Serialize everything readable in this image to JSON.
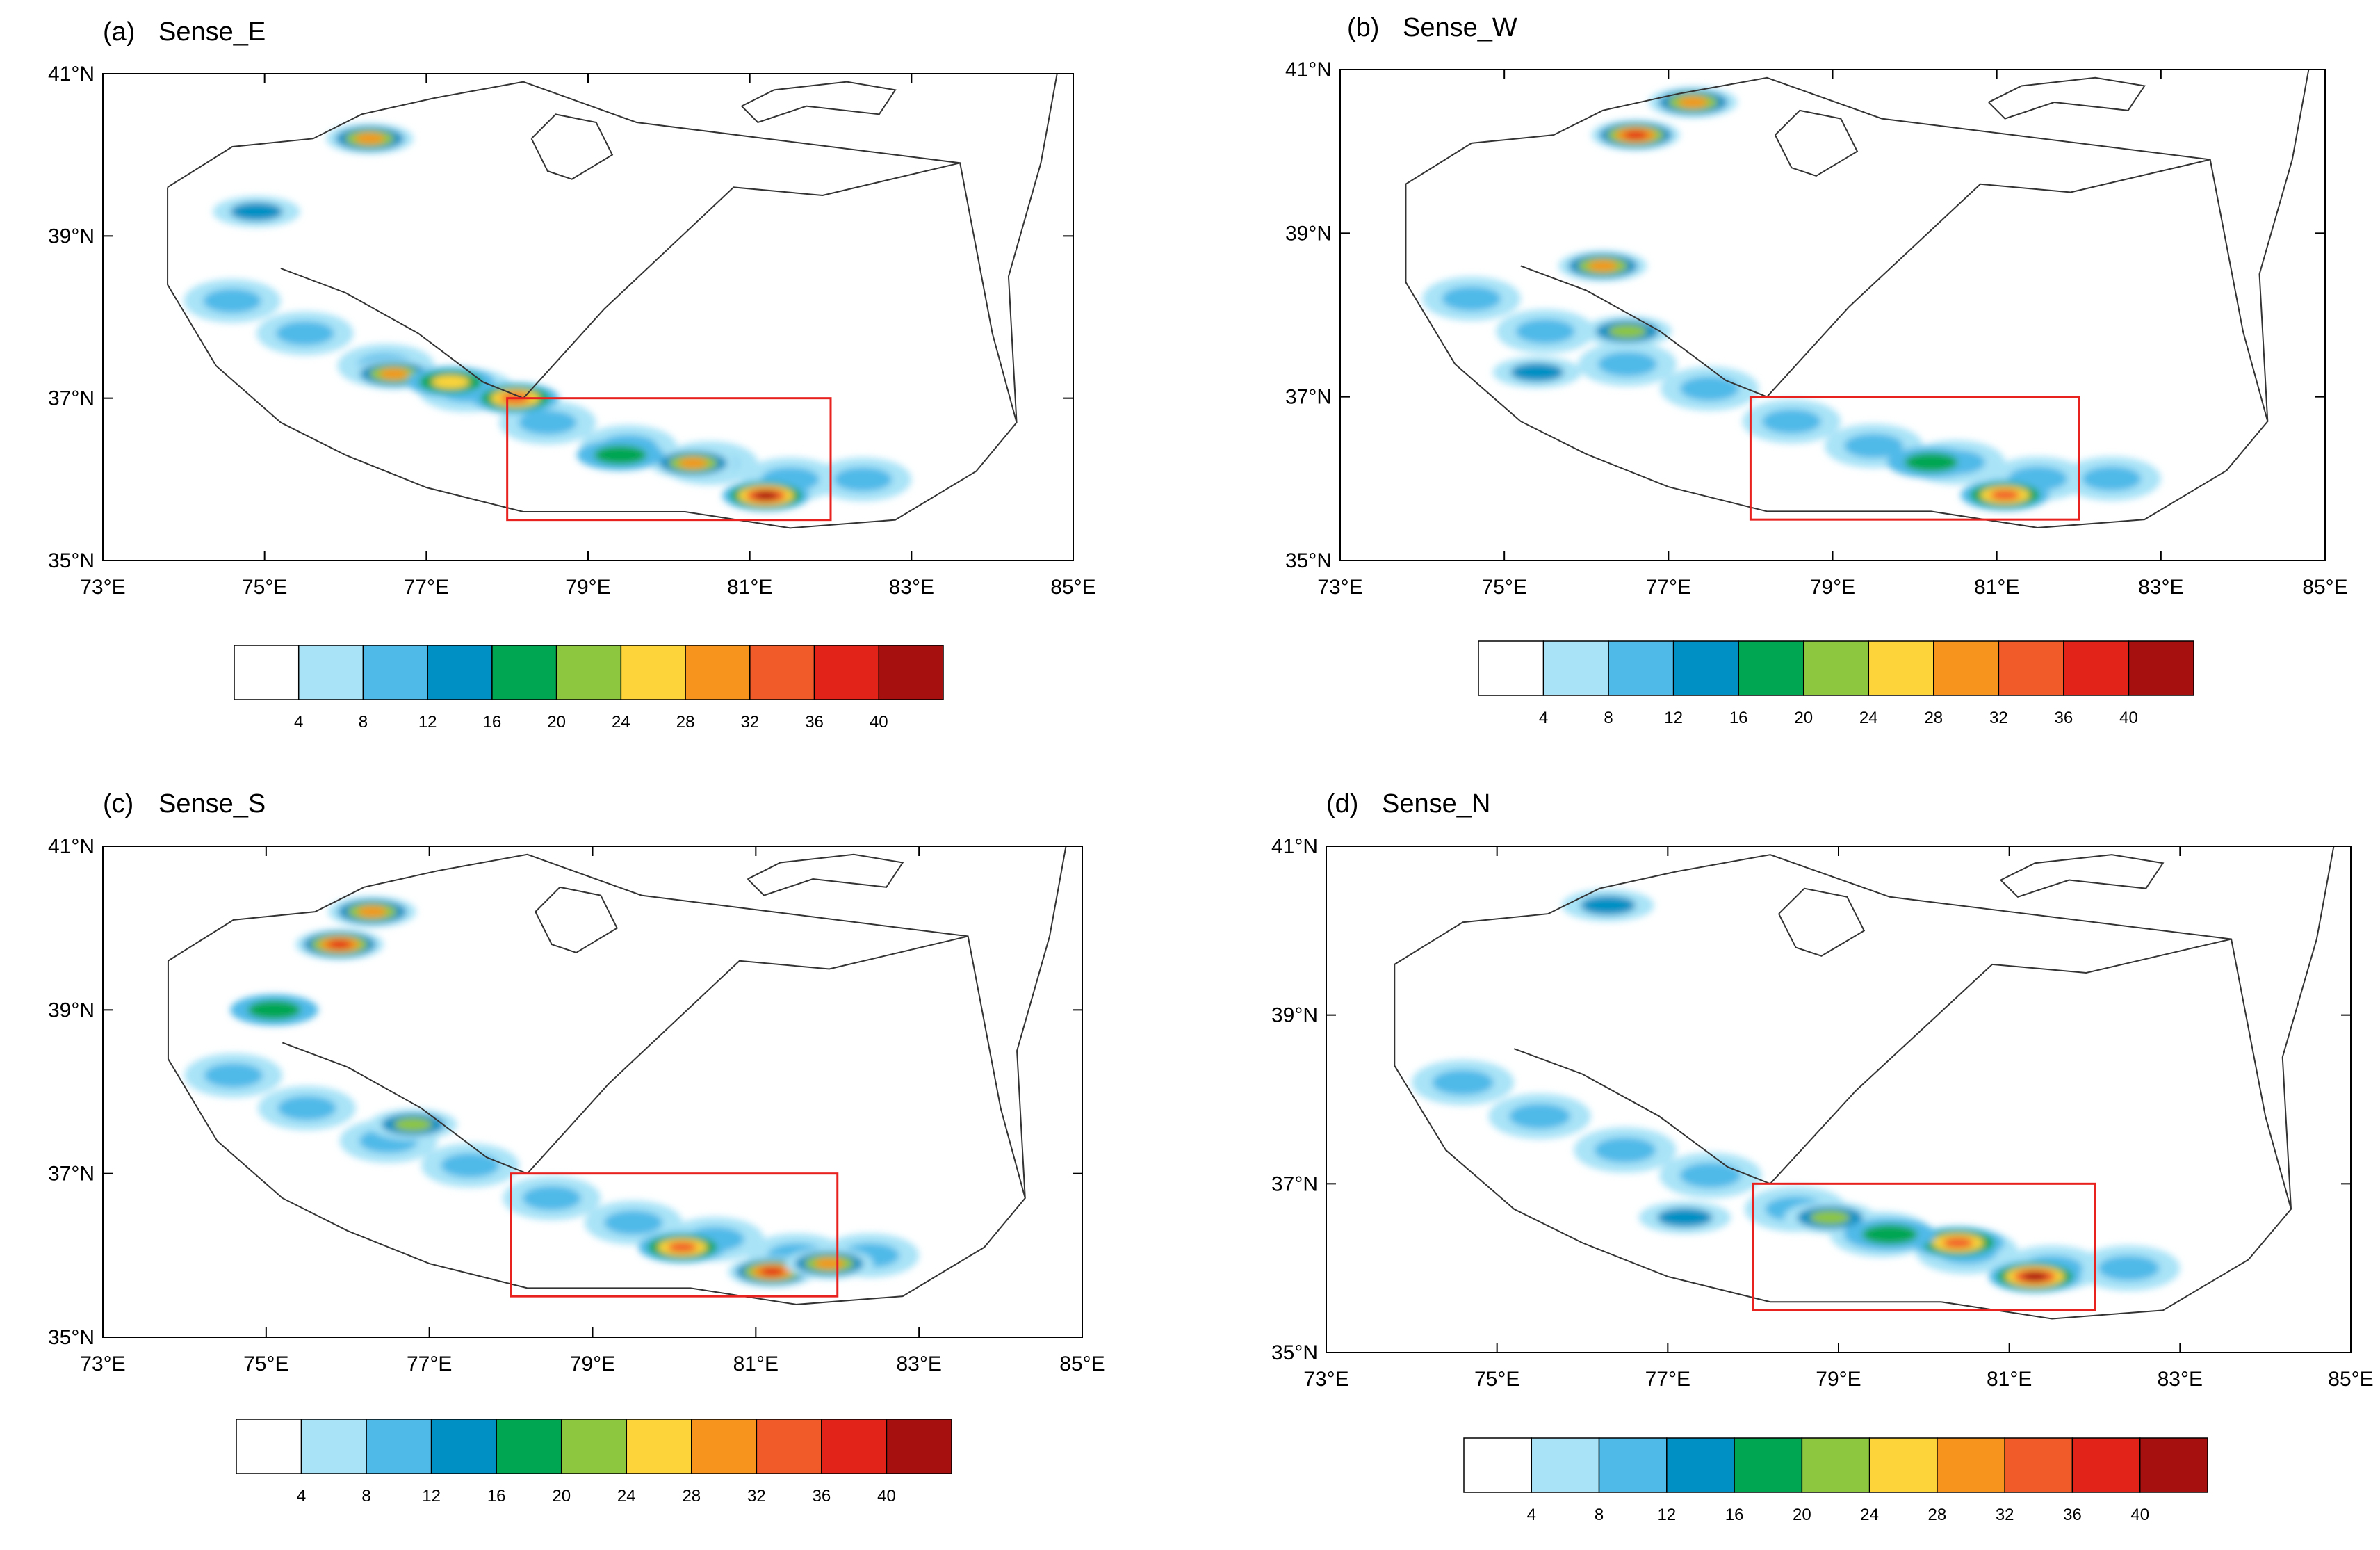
{
  "figure": {
    "panels": [
      {
        "label": "(a)",
        "title": "Sense_E"
      },
      {
        "label": "(b)",
        "title": "Sense_W"
      },
      {
        "label": "(c)",
        "title": "Sense_S"
      },
      {
        "label": "(d)",
        "title": "Sense_N"
      }
    ],
    "lon_ticks": [
      "73°E",
      "75°E",
      "77°E",
      "79°E",
      "81°E",
      "83°E",
      "85°E"
    ],
    "lat_ticks": [
      "35°N",
      "37°N",
      "39°N",
      "41°N"
    ],
    "colorbar": {
      "levels": [
        4,
        8,
        12,
        16,
        20,
        24,
        28,
        32,
        36,
        40
      ],
      "labels": [
        "4",
        "8",
        "12",
        "16",
        "20",
        "24",
        "28",
        "32",
        "36",
        "40"
      ],
      "colors": [
        "#ffffff",
        "#a9e3f7",
        "#4fb9e8",
        "#0090c4",
        "#00a651",
        "#8dc63f",
        "#fdd43a",
        "#f7941d",
        "#f15a29",
        "#e2231a",
        "#a6100f"
      ]
    },
    "box_color": "#e8231f",
    "study_box": {
      "lon_min": 78,
      "lon_max": 82,
      "lat_min": 35.5,
      "lat_max": 37
    }
  },
  "chart_data": [
    {
      "type": "heatmap",
      "title": "Sense_E",
      "lon_range": [
        73,
        85
      ],
      "lat_range": [
        35,
        41
      ],
      "colorbar_levels": [
        4,
        8,
        12,
        16,
        20,
        24,
        28,
        32,
        36,
        40
      ],
      "cells": [
        {
          "lon": 76.3,
          "lat": 40.2,
          "value": 30
        },
        {
          "lon": 74.9,
          "lat": 39.3,
          "value": 14
        },
        {
          "lon": 76.6,
          "lat": 37.3,
          "value": 30
        },
        {
          "lon": 77.3,
          "lat": 37.2,
          "value": 24
        },
        {
          "lon": 78.1,
          "lat": 37.0,
          "value": 34
        },
        {
          "lon": 80.3,
          "lat": 36.2,
          "value": 30
        },
        {
          "lon": 81.2,
          "lat": 35.8,
          "value": 40
        },
        {
          "lon": 79.4,
          "lat": 36.3,
          "value": 16
        }
      ]
    },
    {
      "type": "heatmap",
      "title": "Sense_W",
      "lon_range": [
        73,
        85
      ],
      "lat_range": [
        35,
        41
      ],
      "colorbar_levels": [
        4,
        8,
        12,
        16,
        20,
        24,
        28,
        32,
        36,
        40
      ],
      "cells": [
        {
          "lon": 76.6,
          "lat": 40.2,
          "value": 38
        },
        {
          "lon": 77.3,
          "lat": 40.6,
          "value": 28
        },
        {
          "lon": 76.2,
          "lat": 38.6,
          "value": 30
        },
        {
          "lon": 76.5,
          "lat": 37.8,
          "value": 22
        },
        {
          "lon": 75.4,
          "lat": 37.3,
          "value": 14
        },
        {
          "lon": 81.1,
          "lat": 35.8,
          "value": 32
        },
        {
          "lon": 80.2,
          "lat": 36.2,
          "value": 18
        }
      ]
    },
    {
      "type": "heatmap",
      "title": "Sense_S",
      "lon_range": [
        73,
        85
      ],
      "lat_range": [
        35,
        41
      ],
      "colorbar_levels": [
        4,
        8,
        12,
        16,
        20,
        24,
        28,
        32,
        36,
        40
      ],
      "cells": [
        {
          "lon": 75.9,
          "lat": 39.8,
          "value": 36
        },
        {
          "lon": 76.3,
          "lat": 40.2,
          "value": 30
        },
        {
          "lon": 75.1,
          "lat": 39.0,
          "value": 16
        },
        {
          "lon": 76.8,
          "lat": 37.6,
          "value": 22
        },
        {
          "lon": 80.1,
          "lat": 36.1,
          "value": 32
        },
        {
          "lon": 81.2,
          "lat": 35.8,
          "value": 38
        },
        {
          "lon": 81.9,
          "lat": 35.9,
          "value": 30
        }
      ]
    },
    {
      "type": "heatmap",
      "title": "Sense_N",
      "lon_range": [
        73,
        85
      ],
      "lat_range": [
        35,
        41
      ],
      "colorbar_levels": [
        4,
        8,
        12,
        16,
        20,
        24,
        28,
        32,
        36,
        40
      ],
      "cells": [
        {
          "lon": 76.3,
          "lat": 40.3,
          "value": 14
        },
        {
          "lon": 78.9,
          "lat": 36.6,
          "value": 22
        },
        {
          "lon": 80.4,
          "lat": 36.3,
          "value": 34
        },
        {
          "lon": 81.3,
          "lat": 35.9,
          "value": 40
        },
        {
          "lon": 77.2,
          "lat": 36.6,
          "value": 12
        },
        {
          "lon": 79.6,
          "lat": 36.4,
          "value": 16
        }
      ]
    }
  ]
}
